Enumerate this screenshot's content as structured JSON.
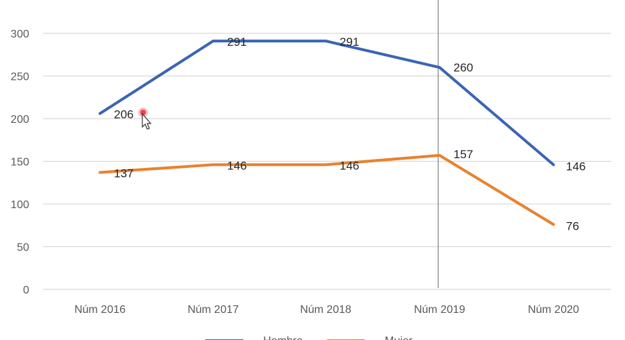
{
  "chart_data": {
    "type": "line",
    "categories": [
      "Núm 2016",
      "Núm 2017",
      "Núm 2018",
      "Núm 2019",
      "Núm 2020"
    ],
    "series": [
      {
        "name": "Hombre",
        "color": "#3b64b4",
        "values": [
          206,
          291,
          291,
          260,
          146
        ]
      },
      {
        "name": "Mujer",
        "color": "#e8822e",
        "values": [
          137,
          146,
          146,
          157,
          76
        ]
      }
    ],
    "yticks": [
      0,
      50,
      100,
      150,
      200,
      250,
      300
    ],
    "ylim": [
      0,
      300
    ],
    "grid": true,
    "legend_position": "bottom",
    "data_labels": true
  },
  "colors": {
    "grid": "#d9d9d9",
    "axis_text": "#595959",
    "cursor_line": "#7f7f7f"
  },
  "icons": [
    "mouse-pointer-icon"
  ]
}
